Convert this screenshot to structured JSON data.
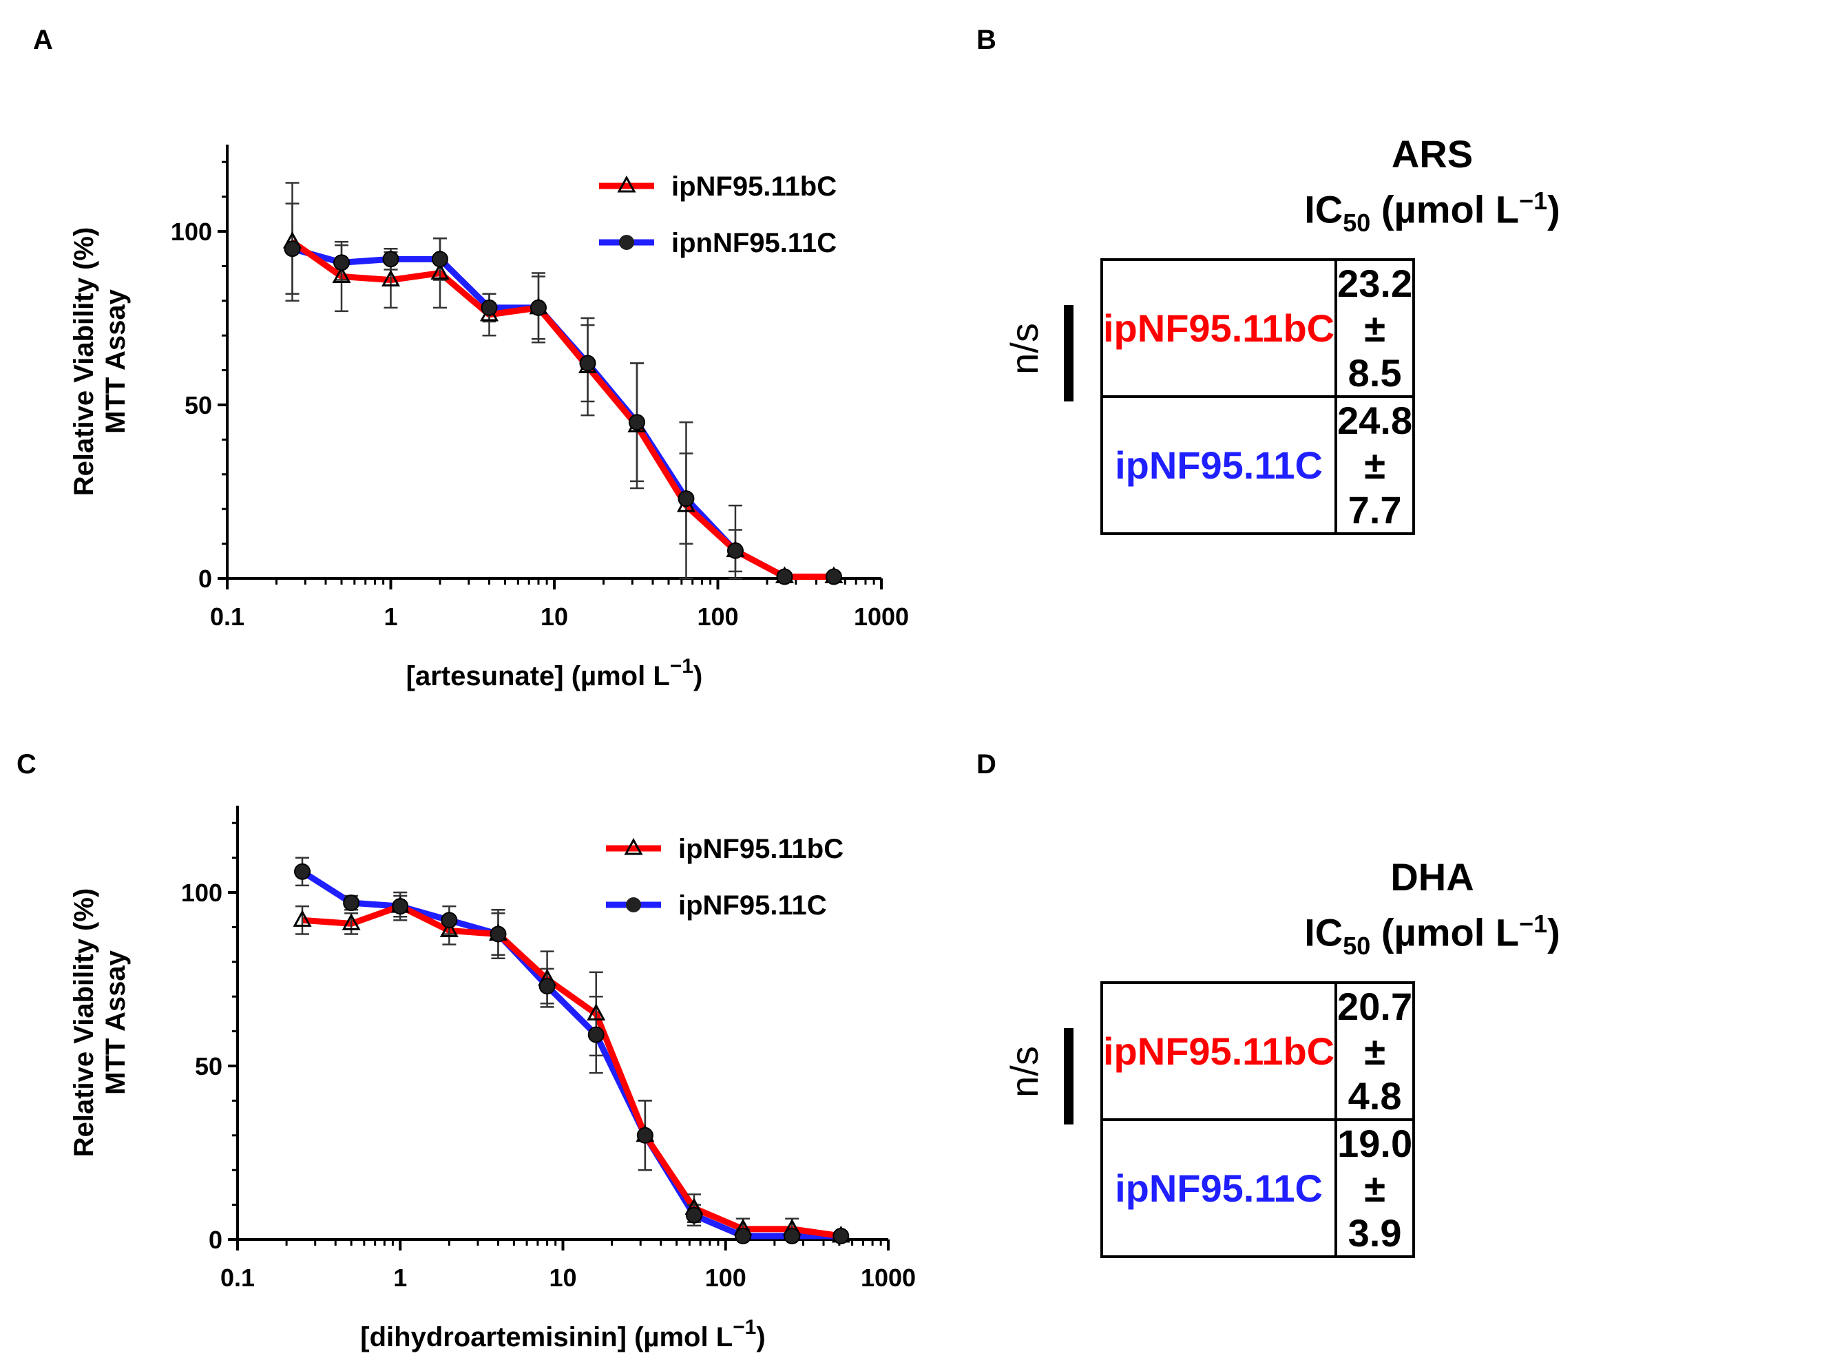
{
  "panels": {
    "A": "A",
    "B": "B",
    "C": "C",
    "D": "D"
  },
  "colors": {
    "red": "#ff0000",
    "blue": "#1f1fff",
    "marker": "#000000"
  },
  "chart_data": [
    {
      "id": "A",
      "type": "line",
      "title": "",
      "xlabel_main": "[artesunate] (µmol L",
      "xlabel_sup": "−1",
      "xlabel_end": ")",
      "ylabel_line1": "Relative Viability (%)",
      "ylabel_line2": "MTT  Assay",
      "xscale": "log",
      "xlim": [
        0.1,
        1000
      ],
      "ylim": [
        0,
        125
      ],
      "xticks": [
        0.1,
        1,
        10,
        100,
        1000
      ],
      "xtick_labels": [
        "0.1",
        "1",
        "10",
        "100",
        "1000"
      ],
      "yticks": [
        0,
        50,
        100
      ],
      "ytick_labels": [
        "0",
        "50",
        "100"
      ],
      "x": [
        0.25,
        0.5,
        1,
        2,
        4,
        8,
        16,
        32,
        64,
        128,
        256,
        512
      ],
      "series": [
        {
          "name": "ipNF95.11bC",
          "color": "red",
          "marker": "triangle",
          "values": [
            97,
            87,
            86,
            88,
            76,
            78,
            61,
            44,
            21,
            8,
            0.5,
            0.5
          ],
          "errors": [
            17,
            10,
            8,
            10,
            6,
            10,
            14,
            18,
            24,
            13,
            1,
            1
          ]
        },
        {
          "name": "ipnNF95.11C",
          "color": "blue",
          "marker": "circle",
          "values": [
            95,
            91,
            92,
            92,
            78,
            78,
            62,
            45,
            23,
            8,
            0.5,
            0.5
          ],
          "errors": [
            13,
            5,
            3,
            6,
            4,
            9,
            11,
            17,
            13,
            6,
            1,
            1
          ]
        }
      ],
      "legend": "top-right"
    },
    {
      "id": "C",
      "type": "line",
      "title": "",
      "xlabel_main": "[dihydroartemisinin] (µmol L",
      "xlabel_sup": "−1",
      "xlabel_end": ")",
      "ylabel_line1": "Relative Viability (%)",
      "ylabel_line2": "MTT  Assay",
      "xscale": "log",
      "xlim": [
        0.1,
        1000
      ],
      "ylim": [
        0,
        125
      ],
      "xticks": [
        0.1,
        1,
        10,
        100,
        1000
      ],
      "xtick_labels": [
        "0.1",
        "1",
        "10",
        "100",
        "1000"
      ],
      "yticks": [
        0,
        50,
        100
      ],
      "ytick_labels": [
        "0",
        "50",
        "100"
      ],
      "x": [
        0.25,
        0.5,
        1,
        2,
        4,
        8,
        16,
        32,
        64,
        128,
        256,
        512
      ],
      "series": [
        {
          "name": "ipNF95.11bC",
          "color": "red",
          "marker": "triangle",
          "values": [
            92,
            91,
            96,
            89,
            88,
            75,
            65,
            30,
            9,
            3,
            3,
            1
          ],
          "errors": [
            4,
            3,
            4,
            4,
            6,
            8,
            12,
            10,
            4,
            3,
            3,
            1
          ]
        },
        {
          "name": "ipNF95.11C",
          "color": "blue",
          "marker": "circle",
          "values": [
            106,
            97,
            96,
            92,
            88,
            73,
            59,
            30,
            7,
            1,
            1,
            1
          ],
          "errors": [
            4,
            2,
            3,
            4,
            7,
            5,
            11,
            10,
            3,
            2,
            1,
            1
          ]
        }
      ],
      "legend": "top-right"
    }
  ],
  "summaries": [
    {
      "id": "B",
      "drug": "ARS",
      "ic_label": "IC",
      "ic_sub": "50",
      "ic_unit_main": " (µmol L",
      "ic_unit_sup": "−1",
      "ic_unit_end": ")",
      "significance": "n/s",
      "rows": [
        {
          "name": "ipNF95.11bC",
          "value": "23.2 ± 8.5",
          "color": "#ff0000"
        },
        {
          "name": "ipNF95.11C",
          "value": "24.8 ± 7.7",
          "color": "#1f1fff"
        }
      ]
    },
    {
      "id": "D",
      "drug": "DHA",
      "ic_label": "IC",
      "ic_sub": "50",
      "ic_unit_main": " (µmol L",
      "ic_unit_sup": "−1",
      "ic_unit_end": ")",
      "significance": "n/s",
      "rows": [
        {
          "name": "ipNF95.11bC",
          "value": "20.7 ± 4.8",
          "color": "#ff0000"
        },
        {
          "name": "ipNF95.11C",
          "value": "19.0 ± 3.9",
          "color": "#1f1fff"
        }
      ]
    }
  ]
}
